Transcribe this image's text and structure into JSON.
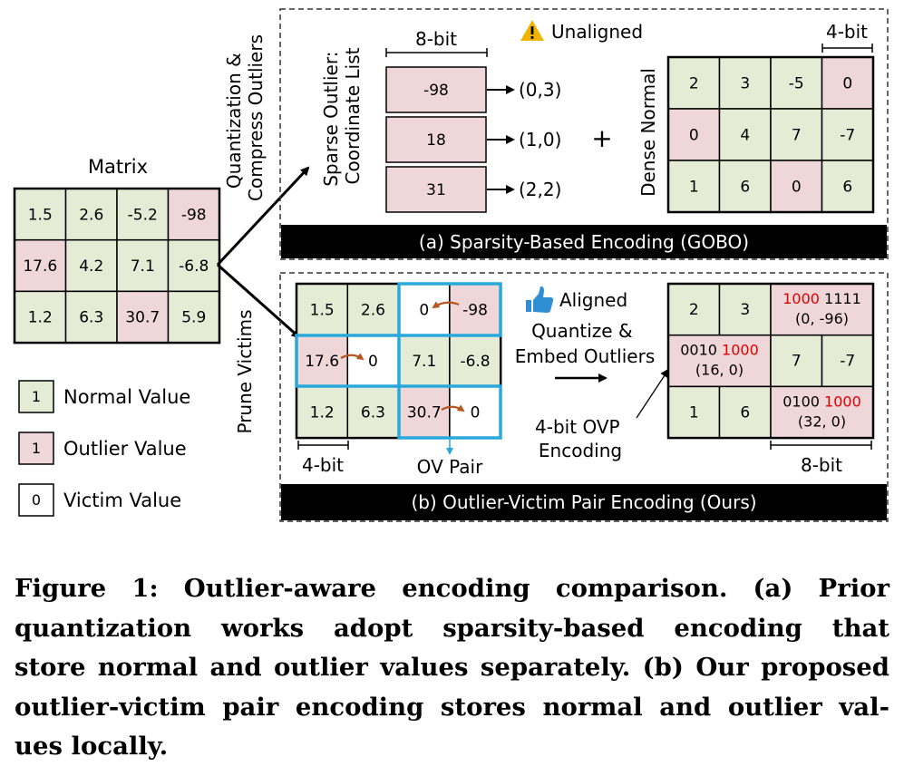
{
  "matrix": {
    "title": "Matrix",
    "cells": [
      [
        "1.5",
        "2.6",
        "-5.2",
        "-98"
      ],
      [
        "17.6",
        "4.2",
        "7.1",
        "-6.8"
      ],
      [
        "1.2",
        "6.3",
        "30.7",
        "5.9"
      ]
    ],
    "outliers": [
      [
        0,
        3
      ],
      [
        1,
        0
      ],
      [
        2,
        2
      ]
    ]
  },
  "legend": [
    {
      "swatch": "1",
      "label": "Normal Value",
      "kind": "normal"
    },
    {
      "swatch": "1",
      "label": "Outlier Value",
      "kind": "outlier"
    },
    {
      "swatch": "0",
      "label": "Victim Value",
      "kind": "victim"
    }
  ],
  "arrow_labels": {
    "top": [
      "Quantization &",
      "Compress Outliers"
    ],
    "bottom": "Prune Victims"
  },
  "panel_a": {
    "unaligned_label": "Unaligned",
    "sparse_label": [
      "Sparse Outlier:",
      "Coordinate List"
    ],
    "bit8_label": "8-bit",
    "list_values": [
      "-98",
      "18",
      "31"
    ],
    "list_coords": [
      "(0,3)",
      "(1,0)",
      "(2,2)"
    ],
    "plus": "+",
    "dense_label": "Dense Normal",
    "bit4_label": "4-bit",
    "dense_cells": [
      [
        "2",
        "3",
        "-5",
        "0"
      ],
      [
        "0",
        "4",
        "7",
        "-7"
      ],
      [
        "1",
        "6",
        "0",
        "6"
      ]
    ],
    "dense_pink": [
      [
        0,
        3
      ],
      [
        1,
        0
      ],
      [
        2,
        2
      ]
    ],
    "banner": "(a) Sparsity-Based Encoding (GOBO)"
  },
  "panel_b": {
    "aligned_label": "Aligned",
    "left_cells": [
      [
        "1.5",
        "2.6",
        "0",
        "-98"
      ],
      [
        "17.6",
        "0",
        "7.1",
        "-6.8"
      ],
      [
        "1.2",
        "6.3",
        "30.7",
        "0"
      ]
    ],
    "left_pink": [
      [
        0,
        3
      ],
      [
        1,
        0
      ],
      [
        2,
        2
      ]
    ],
    "left_white": [
      [
        0,
        2
      ],
      [
        1,
        1
      ],
      [
        2,
        3
      ]
    ],
    "bit4_label": "4-bit",
    "ov_pair_label": "OV Pair",
    "quantize_label": [
      "Quantize &",
      "Embed Outliers"
    ],
    "ovp_label": [
      "4-bit OVP",
      "Encoding"
    ],
    "right_cells": {
      "r0": [
        "2",
        "3"
      ],
      "r1": [
        "7",
        "-7"
      ],
      "r2": [
        "1",
        "6"
      ]
    },
    "pairs": [
      {
        "bits_a": "1000",
        "bits_b": "1111",
        "value": "(0, -96)"
      },
      {
        "bits_a": "0010",
        "bits_b": "1000",
        "value": "(16, 0)"
      },
      {
        "bits_a": "0100",
        "bits_b": "1000",
        "value": "(32, 0)"
      }
    ],
    "bit8_label": "8-bit",
    "banner": "(b) Outlier-Victim Pair Encoding (Ours)"
  },
  "caption": {
    "lines": [
      "Figure 1: Outlier-aware encoding comparison. (a) Prior",
      "quantization works adopt sparsity-based encoding that",
      "store normal and outlier values separately. (b) Our proposed",
      "outlier-victim pair encoding stores normal and outlier val-",
      "ues locally."
    ]
  },
  "colors": {
    "normal": "#e5ecd5",
    "outlier": "#efd6d8",
    "victim": "#ffffff",
    "highlight": "#29a8dc",
    "arrow_brown": "#b5561f",
    "red_text": "#e00000",
    "banner": "#000000",
    "warning": "#f0b400",
    "thumb": "#2f8fd5"
  }
}
